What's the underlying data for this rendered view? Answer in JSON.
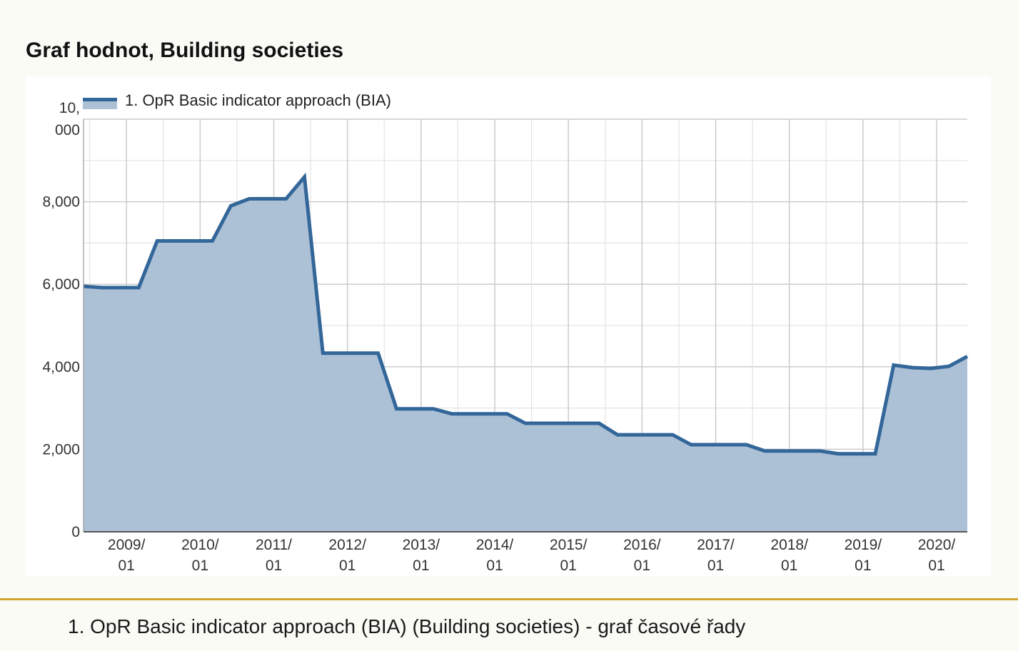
{
  "page": {
    "title": "Graf hodnot, Building societies",
    "caption": "1. OpR Basic indicator approach (BIA) (Building societies) - graf časové řady"
  },
  "colors": {
    "line": "#336699",
    "area": "#adc1d6",
    "grid_major": "#cccccc",
    "grid_minor": "#e3e3e3",
    "axis": "#555555",
    "divider": "#d4a52e"
  },
  "chart_data": {
    "type": "area",
    "title": "",
    "xlabel": "",
    "ylabel": "",
    "ylim": [
      0,
      10000
    ],
    "yticks": [
      {
        "value": 0,
        "label": "0"
      },
      {
        "value": 2000,
        "label": "2,000"
      },
      {
        "value": 4000,
        "label": "4,000"
      },
      {
        "value": 6000,
        "label": "6,000"
      },
      {
        "value": 8000,
        "label": "8,000"
      },
      {
        "value": 10000,
        "label": "10,\n000"
      }
    ],
    "xticks": [
      "2009/01",
      "2010/01",
      "2011/01",
      "2012/01",
      "2013/01",
      "2014/01",
      "2015/01",
      "2016/01",
      "2017/01",
      "2018/01",
      "2019/01",
      "2020/01"
    ],
    "xlim": [
      "2008/06",
      "2020/06"
    ],
    "legend": {
      "position": "top-left"
    },
    "grid": true,
    "series": [
      {
        "name": "1. OpR Basic indicator approach (BIA)",
        "x": [
          "2008/06",
          "2008/09",
          "2008/12",
          "2009/03",
          "2009/06",
          "2009/09",
          "2009/12",
          "2010/03",
          "2010/06",
          "2010/09",
          "2010/12",
          "2011/03",
          "2011/06",
          "2011/09",
          "2011/12",
          "2012/03",
          "2012/06",
          "2012/09",
          "2012/12",
          "2013/03",
          "2013/06",
          "2013/09",
          "2013/12",
          "2014/03",
          "2014/06",
          "2014/09",
          "2014/12",
          "2015/03",
          "2015/06",
          "2015/09",
          "2015/12",
          "2016/03",
          "2016/06",
          "2016/09",
          "2016/12",
          "2017/03",
          "2017/06",
          "2017/09",
          "2017/12",
          "2018/03",
          "2018/06",
          "2018/09",
          "2018/12",
          "2019/03",
          "2019/06",
          "2019/09",
          "2019/12",
          "2020/03",
          "2020/06"
        ],
        "values": [
          5950,
          5920,
          5920,
          5920,
          7050,
          7050,
          7050,
          7050,
          7900,
          8070,
          8070,
          8070,
          8600,
          4330,
          4330,
          4330,
          4330,
          2980,
          2980,
          2980,
          2860,
          2860,
          2860,
          2860,
          2630,
          2630,
          2630,
          2630,
          2630,
          2350,
          2350,
          2350,
          2350,
          2110,
          2110,
          2110,
          2110,
          1960,
          1960,
          1960,
          1960,
          1890,
          1890,
          1890,
          4040,
          3980,
          3960,
          4010,
          4250
        ]
      }
    ]
  }
}
